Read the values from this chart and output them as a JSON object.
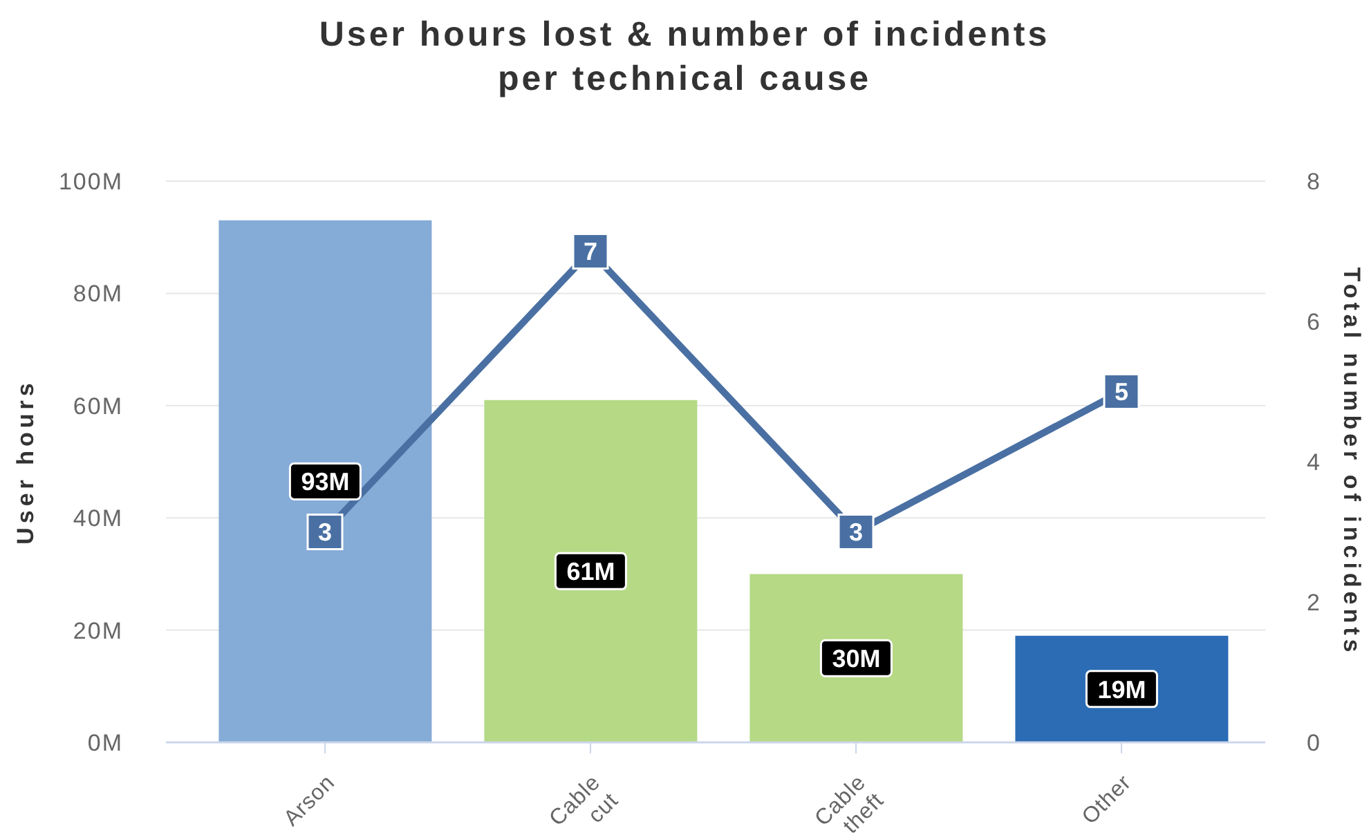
{
  "chart_data": {
    "type": "bar",
    "title": "User hours lost & number of incidents per technical cause",
    "ylabel": "User hours",
    "y2label": "Total number of incidents",
    "categories": [
      "Arson",
      "Cable cut",
      "Cable theft",
      "Other"
    ],
    "series": [
      {
        "colors": [
          "#85abd7",
          "#b5d985",
          "#b5d985",
          "#2b6cb4"
        ],
        "values": [
          93,
          61,
          30,
          19
        ],
        "value_labels": [
          "93M",
          "61M",
          "30M",
          "19M"
        ]
      },
      {
        "type": "line",
        "axis": "y2",
        "color": "#4a70a3",
        "marker": "square",
        "values": [
          3,
          7,
          3,
          5
        ],
        "value_labels": [
          "3",
          "7",
          "3",
          "5"
        ]
      }
    ],
    "ylim": [
      0,
      100
    ],
    "yticks": [
      {
        "value": 0,
        "label": "0M"
      },
      {
        "value": 20,
        "label": "20M"
      },
      {
        "value": 40,
        "label": "40M"
      },
      {
        "value": 60,
        "label": "60M"
      },
      {
        "value": 80,
        "label": "80M"
      },
      {
        "value": 100,
        "label": "100M"
      }
    ],
    "y2lim": [
      0,
      8
    ],
    "y2ticks": [
      0,
      2,
      4,
      6,
      8
    ],
    "grid": "y"
  }
}
